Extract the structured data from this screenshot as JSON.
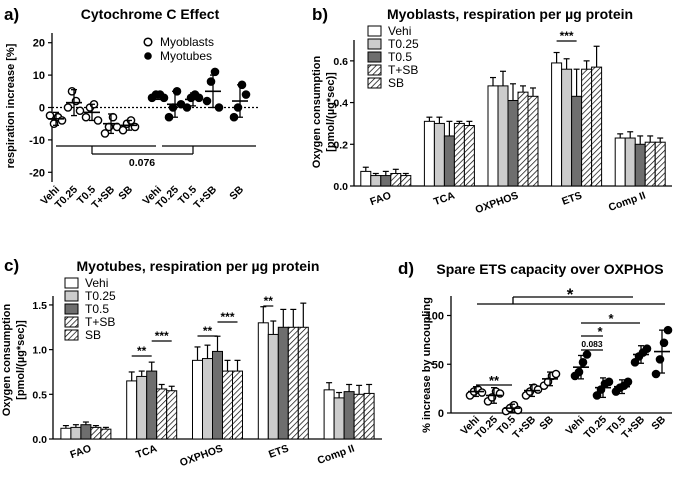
{
  "chart_data": [
    {
      "panel": "a)",
      "type": "scatter",
      "title": "Cytochrome C Effect",
      "ylabel": "respiration increase [%]",
      "ylim": [
        -23,
        23
      ],
      "yticks": [
        -20,
        -10,
        0,
        10,
        20
      ],
      "categories": [
        "Vehi",
        "T0.25",
        "T0.5",
        "T+SB",
        "SB",
        "Vehi",
        "T0.25",
        "T0.5",
        "T+SB",
        "SB"
      ],
      "legend": [
        "Myoblasts",
        "Myotubes"
      ],
      "annotation": "0.076",
      "series": [
        {
          "name": "Myoblasts",
          "means": [
            -3.5,
            1.5,
            -1.5,
            -5,
            -5.5
          ],
          "sd": [
            2,
            4,
            2.5,
            3,
            1.5
          ],
          "points": [
            [
              -2.5,
              -5,
              -3,
              -4
            ],
            [
              0,
              5,
              2,
              -1
            ],
            [
              -3,
              0,
              1,
              -4
            ],
            [
              -8,
              -6,
              -3,
              -6
            ],
            [
              -7,
              -5,
              -4,
              -6
            ]
          ]
        },
        {
          "name": "Myotubes",
          "means": [
            3.5,
            1,
            2.5,
            5,
            2
          ],
          "sd": [
            1,
            4,
            2,
            5,
            5
          ],
          "points": [
            [
              3,
              4,
              4,
              3
            ],
            [
              -3,
              0,
              5,
              1
            ],
            [
              0,
              3,
              4,
              3
            ],
            [
              2,
              8,
              11,
              0
            ],
            [
              -3,
              0,
              7,
              4
            ]
          ]
        }
      ]
    },
    {
      "panel": "b)",
      "type": "bar",
      "title": "Myoblasts, respiration per µg protein",
      "ylabel": "Oxygen consumption",
      "ylabel2": "[pmol/(µg*sec)]",
      "ylim": [
        0,
        0.7
      ],
      "yticks": [
        "0.0",
        "0.2",
        "0.4",
        "0.6"
      ],
      "categories": [
        "FAO",
        "TCA",
        "OXPHOS",
        "ETS",
        "Comp II"
      ],
      "legend": [
        "Vehi",
        "T0.25",
        "T0.5",
        "T+SB",
        "SB"
      ],
      "significance": [
        "***"
      ],
      "series": [
        {
          "name": "Vehi",
          "values": [
            0.07,
            0.31,
            0.48,
            0.59,
            0.23
          ],
          "err": [
            0.02,
            0.02,
            0.04,
            0.05,
            0.02
          ]
        },
        {
          "name": "T0.25",
          "values": [
            0.05,
            0.3,
            0.48,
            0.56,
            0.23
          ],
          "err": [
            0.01,
            0.03,
            0.07,
            0.05,
            0.03
          ]
        },
        {
          "name": "T0.5",
          "values": [
            0.05,
            0.24,
            0.41,
            0.43,
            0.2
          ],
          "err": [
            0.02,
            0.07,
            0.08,
            0.13,
            0.04
          ]
        },
        {
          "name": "T+SB",
          "values": [
            0.06,
            0.3,
            0.45,
            0.56,
            0.21
          ],
          "err": [
            0.02,
            0.01,
            0.03,
            0.04,
            0.03
          ]
        },
        {
          "name": "SB",
          "values": [
            0.05,
            0.29,
            0.43,
            0.57,
            0.21
          ],
          "err": [
            0.01,
            0.02,
            0.04,
            0.1,
            0.02
          ]
        }
      ]
    },
    {
      "panel": "c)",
      "type": "bar",
      "title": "Myotubes, respiration per µg protein",
      "ylabel": "Oxygen consumption",
      "ylabel2": "[pmol/(µg*sec)]",
      "ylim": [
        0,
        1.6
      ],
      "yticks": [
        "0.0",
        "0.5",
        "1.0",
        "1.5"
      ],
      "categories": [
        "FAO",
        "TCA",
        "OXPHOS",
        "ETS",
        "Comp II"
      ],
      "legend": [
        "Vehi",
        "T0.25",
        "T0.5",
        "T+SB",
        "SB"
      ],
      "significance": [
        "**",
        "***",
        "**",
        "***",
        "**"
      ],
      "series": [
        {
          "name": "Vehi",
          "values": [
            0.12,
            0.65,
            0.88,
            1.3,
            0.55
          ],
          "err": [
            0.03,
            0.1,
            0.15,
            0.18,
            0.08
          ]
        },
        {
          "name": "T0.25",
          "values": [
            0.13,
            0.7,
            0.9,
            1.17,
            0.46
          ],
          "err": [
            0.03,
            0.06,
            0.15,
            0.15,
            0.06
          ]
        },
        {
          "name": "T0.5",
          "values": [
            0.16,
            0.76,
            0.98,
            1.25,
            0.53
          ],
          "err": [
            0.03,
            0.1,
            0.17,
            0.2,
            0.08
          ]
        },
        {
          "name": "T+SB",
          "values": [
            0.13,
            0.56,
            0.76,
            1.25,
            0.5
          ],
          "err": [
            0.02,
            0.05,
            0.12,
            0.2,
            0.1
          ]
        },
        {
          "name": "SB",
          "values": [
            0.11,
            0.54,
            0.76,
            1.25,
            0.51
          ],
          "err": [
            0.02,
            0.05,
            0.12,
            0.27,
            0.1
          ]
        }
      ]
    },
    {
      "panel": "d)",
      "type": "scatter",
      "title": "Spare ETS capacity over OXPHOS",
      "ylabel": "% increase by uncoupling",
      "ylim": [
        0,
        120
      ],
      "yticks": [
        0,
        50,
        100
      ],
      "categories": [
        "Vehi",
        "T0.25",
        "T0.5",
        "T+SB",
        "SB",
        "Vehi",
        "T0.25",
        "T0.5",
        "T+SB",
        "SB"
      ],
      "significance": [
        "**",
        "*",
        "*",
        "*"
      ],
      "annotation": "0.083",
      "series": [
        {
          "name": "Myoblasts",
          "means": [
            22,
            18,
            5,
            23,
            35
          ],
          "sd": [
            5,
            8,
            4,
            6,
            7
          ],
          "points": [
            [
              18,
              22,
              24,
              21
            ],
            [
              12,
              16,
              22,
              20
            ],
            [
              2,
              5,
              8,
              3
            ],
            [
              18,
              22,
              26,
              24
            ],
            [
              28,
              32,
              38,
              40
            ]
          ]
        },
        {
          "name": "Myotubes",
          "means": [
            47,
            26,
            27,
            60,
            63
          ],
          "sd": [
            12,
            10,
            7,
            9,
            22
          ],
          "points": [
            [
              38,
              42,
              52,
              60
            ],
            [
              18,
              24,
              30,
              32
            ],
            [
              22,
              26,
              28,
              32
            ],
            [
              52,
              58,
              62,
              66
            ],
            [
              40,
              55,
              72,
              85
            ]
          ]
        }
      ]
    }
  ]
}
